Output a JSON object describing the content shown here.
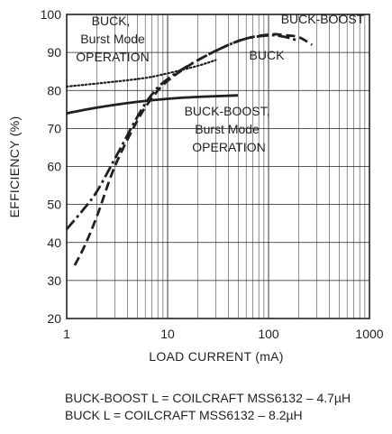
{
  "chart_data": {
    "type": "line",
    "title": "",
    "xlabel": "LOAD CURRENT (mA)",
    "ylabel": "EFFICIENCY (%)",
    "xscale": "log",
    "xlim": [
      1,
      1000
    ],
    "ylim": [
      20,
      100
    ],
    "xticks": [
      1,
      10,
      100,
      1000
    ],
    "xtick_labels": [
      "1",
      "10",
      "100",
      "1000"
    ],
    "yticks": [
      20,
      30,
      40,
      50,
      60,
      70,
      80,
      90,
      100
    ],
    "ytick_labels": [
      "20",
      "30",
      "40",
      "50",
      "60",
      "70",
      "80",
      "90",
      "100"
    ],
    "grid": true,
    "legend": "none",
    "series": [
      {
        "name": "BUCK-BOOST",
        "style": "dash-dot",
        "x": [
          1,
          1.5,
          2,
          3,
          5,
          7,
          10,
          20,
          50,
          100,
          150,
          200
        ],
        "y": [
          43.5,
          49,
          53.5,
          62,
          73,
          79,
          83,
          88,
          93,
          94.5,
          94,
          93
        ]
      },
      {
        "name": "BUCK",
        "style": "dashed",
        "x": [
          1.2,
          1.5,
          2,
          3,
          5,
          7,
          10,
          20,
          50,
          100,
          150,
          200,
          270
        ],
        "y": [
          34,
          39,
          47,
          60,
          72,
          78,
          82.5,
          88,
          93,
          94.7,
          94.5,
          94,
          92
        ]
      },
      {
        "name": "BUCK, Burst Mode OPERATION",
        "style": "dotted",
        "x": [
          1,
          5,
          10,
          20,
          30
        ],
        "y": [
          81,
          83,
          84.5,
          86.5,
          88
        ]
      },
      {
        "name": "BUCK-BOOST, Burst Mode OPERATION",
        "style": "solid",
        "x": [
          1,
          2,
          5,
          10,
          20,
          50
        ],
        "y": [
          74,
          75.5,
          77,
          77.8,
          78.3,
          78.7
        ]
      }
    ],
    "annotations": [
      {
        "id": "buck-burst",
        "lines": [
          "BUCK,",
          "Burst Mode",
          "OPERATION"
        ]
      },
      {
        "id": "buck-boost",
        "lines": [
          "BUCK-BOOST"
        ]
      },
      {
        "id": "buck",
        "lines": [
          "BUCK"
        ]
      },
      {
        "id": "bb-burst",
        "lines": [
          "BUCK-BOOST,",
          "Burst Mode",
          "OPERATION"
        ]
      }
    ]
  },
  "footnotes": [
    "BUCK-BOOST L = COILCRAFT MSS6132 – 4.7µH",
    "BUCK L = COILCRAFT MSS6132 – 8.2µH"
  ],
  "colors": {
    "ink": "#231f20",
    "grid": "#231f20",
    "background": "#ffffff"
  }
}
